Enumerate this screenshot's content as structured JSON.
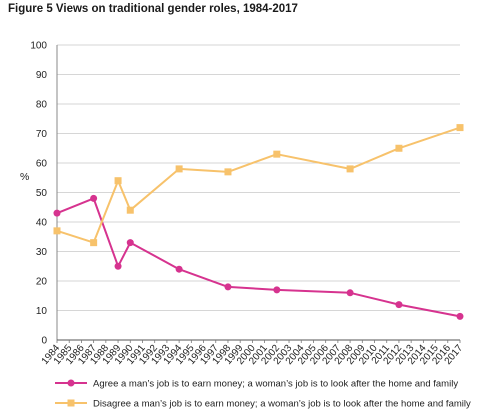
{
  "chart_data": {
    "type": "line",
    "title": "Figure 5 Views on traditional gender roles, 1984-2017",
    "ylabel": "%",
    "xlabel": "",
    "ylim": [
      0,
      100
    ],
    "yticks": [
      "0",
      "10",
      "20",
      "30",
      "40",
      "50",
      "60",
      "70",
      "80",
      "90",
      "100"
    ],
    "x": [
      "1984",
      "1985",
      "1986",
      "1987",
      "1988",
      "1989",
      "1990",
      "1991",
      "1992",
      "1993",
      "1994",
      "1995",
      "1996",
      "1997",
      "1998",
      "1999",
      "2000",
      "2001",
      "2002",
      "2003",
      "2004",
      "2005",
      "2006",
      "2007",
      "2008",
      "2009",
      "2010",
      "2011",
      "2012",
      "2013",
      "2014",
      "2015",
      "2016",
      "2017"
    ],
    "grid": true,
    "legend_position": "bottom",
    "series": [
      {
        "name": "Agree a man’s job is to earn money; a woman’s job is to look after the home and family",
        "color": "#d6338f",
        "marker": "circle",
        "points": [
          [
            1984,
            43
          ],
          [
            1987,
            48
          ],
          [
            1989,
            25
          ],
          [
            1990,
            33
          ],
          [
            1994,
            24
          ],
          [
            1998,
            18
          ],
          [
            2002,
            17
          ],
          [
            2008,
            16
          ],
          [
            2012,
            12
          ],
          [
            2017,
            8
          ]
        ]
      },
      {
        "name": "Disagree a man’s job is to earn money; a woman’s job is to look after the home and family",
        "color": "#f7c26b",
        "marker": "square",
        "points": [
          [
            1984,
            37
          ],
          [
            1987,
            33
          ],
          [
            1989,
            54
          ],
          [
            1990,
            44
          ],
          [
            1994,
            58
          ],
          [
            1998,
            57
          ],
          [
            2002,
            63
          ],
          [
            2008,
            58
          ],
          [
            2012,
            65
          ],
          [
            2017,
            72
          ]
        ]
      }
    ]
  }
}
